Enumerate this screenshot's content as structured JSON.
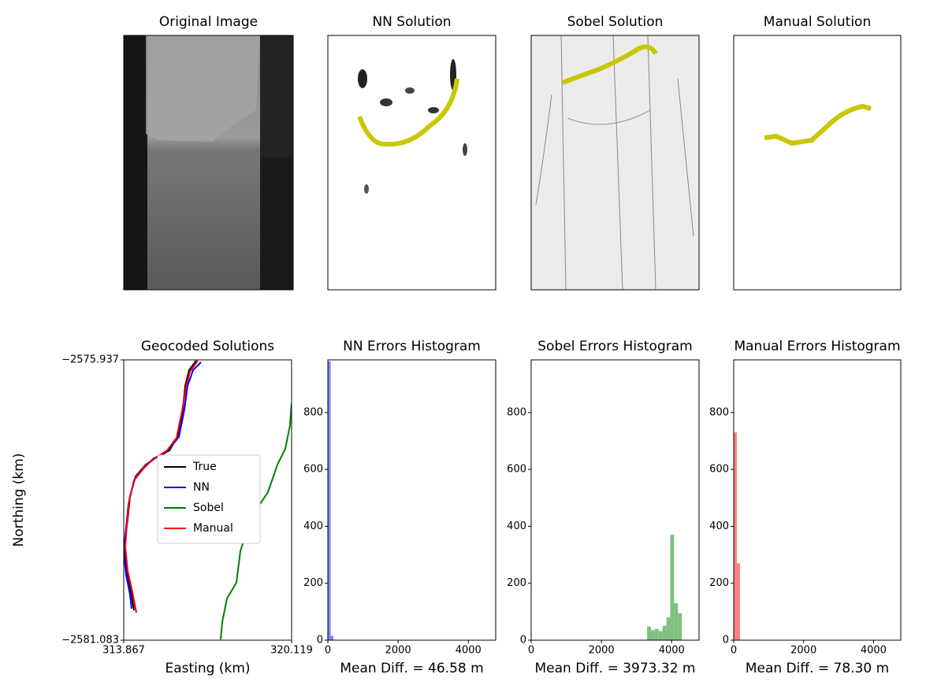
{
  "chart_data": [
    {
      "type": "image",
      "title": "Original Image"
    },
    {
      "type": "image",
      "title": "NN Solution"
    },
    {
      "type": "image",
      "title": "Sobel Solution"
    },
    {
      "type": "image",
      "title": "Manual Solution"
    },
    {
      "type": "line",
      "title": "Geocoded Solutions",
      "xlabel": "Easting (km)",
      "ylabel": "Northing (km)",
      "xlim": [
        313.867,
        320.119
      ],
      "ylim": [
        -2581.083,
        -2575.937
      ],
      "xticks": [
        313.867,
        320.119
      ],
      "yticks": [
        {
          "value": -2581.083,
          "label": "−2581.083"
        },
        {
          "value": -2575.937,
          "label": "−2575.937"
        }
      ],
      "legend": "center",
      "series": [
        {
          "name": "True",
          "color": "#000000",
          "x": [
            316.567,
            316.303,
            316.156,
            316.068,
            315.863,
            315.569,
            315.129,
            314.689,
            314.307,
            314.102,
            314.014,
            313.896,
            313.955,
            314.102,
            314.249
          ],
          "values": [
            -2575.951,
            -2576.125,
            -2576.414,
            -2576.848,
            -2577.354,
            -2577.599,
            -2577.715,
            -2577.86,
            -2578.076,
            -2578.438,
            -2578.871,
            -2579.305,
            -2579.739,
            -2580.1,
            -2580.534
          ]
        },
        {
          "name": "NN",
          "color": "#0000ff",
          "x": [
            316.743,
            316.45,
            316.244,
            316.127,
            315.922,
            315.423,
            314.982,
            314.601,
            314.249,
            314.043,
            313.955,
            313.867,
            313.955,
            314.102,
            314.161
          ],
          "values": [
            -2575.98,
            -2576.125,
            -2576.414,
            -2576.848,
            -2577.354,
            -2577.643,
            -2577.744,
            -2577.932,
            -2578.149,
            -2578.582,
            -2579.016,
            -2579.45,
            -2579.883,
            -2580.245,
            -2580.505
          ]
        },
        {
          "name": "Sobel",
          "color": "#008000",
          "x": [
            320.119,
            320.06,
            319.884,
            319.591,
            319.238,
            318.945,
            318.593,
            318.211,
            318.064,
            317.712,
            317.536,
            317.477
          ],
          "values": [
            -2576.732,
            -2577.137,
            -2577.57,
            -2577.86,
            -2578.365,
            -2578.582,
            -2578.871,
            -2579.45,
            -2580.028,
            -2580.317,
            -2580.751,
            -2581.069
          ]
        },
        {
          "name": "Manual",
          "color": "#ff0000",
          "x": [
            316.626,
            316.333,
            316.186,
            316.039,
            315.834,
            315.481,
            315.07,
            314.66,
            314.278,
            314.072,
            313.984,
            313.926,
            314.014,
            314.19,
            314.337
          ],
          "values": [
            -2575.951,
            -2576.154,
            -2576.443,
            -2576.877,
            -2577.368,
            -2577.599,
            -2577.729,
            -2577.888,
            -2578.12,
            -2578.51,
            -2578.944,
            -2579.377,
            -2579.811,
            -2580.201,
            -2580.577
          ]
        }
      ]
    },
    {
      "type": "histogram",
      "title": "NN Errors Histogram",
      "xlabel": "Mean Diff. = 46.58 m",
      "color": "#8080ff",
      "xlim": [
        0,
        4780
      ],
      "ylim": [
        0,
        985
      ],
      "xticks": [
        0,
        2000,
        4000
      ],
      "yticks": [
        0,
        200,
        400,
        600,
        800
      ],
      "bins": [
        0,
        80,
        160
      ],
      "values": [
        980,
        15
      ]
    },
    {
      "type": "histogram",
      "title": "Sobel Errors Histogram",
      "xlabel": "Mean Diff. = 3973.32 m",
      "color": "#80c080",
      "xlim": [
        0,
        4780
      ],
      "ylim": [
        0,
        985
      ],
      "xticks": [
        0,
        2000,
        4000
      ],
      "yticks": [
        0,
        200,
        400,
        600,
        800
      ],
      "bins": [
        3300,
        3410,
        3520,
        3630,
        3740,
        3850,
        3960,
        4070,
        4180,
        4290
      ],
      "values": [
        48,
        35,
        40,
        32,
        50,
        80,
        370,
        130,
        95
      ]
    },
    {
      "type": "histogram",
      "title": "Manual Errors Histogram",
      "xlabel": "Mean Diff. = 78.30 m",
      "color": "#ff8080",
      "xlim": [
        0,
        4780
      ],
      "ylim": [
        0,
        985
      ],
      "xticks": [
        0,
        2000,
        4000
      ],
      "yticks": [
        0,
        200,
        400,
        600,
        800
      ],
      "bins": [
        0,
        90,
        180
      ],
      "values": [
        730,
        270
      ]
    }
  ]
}
